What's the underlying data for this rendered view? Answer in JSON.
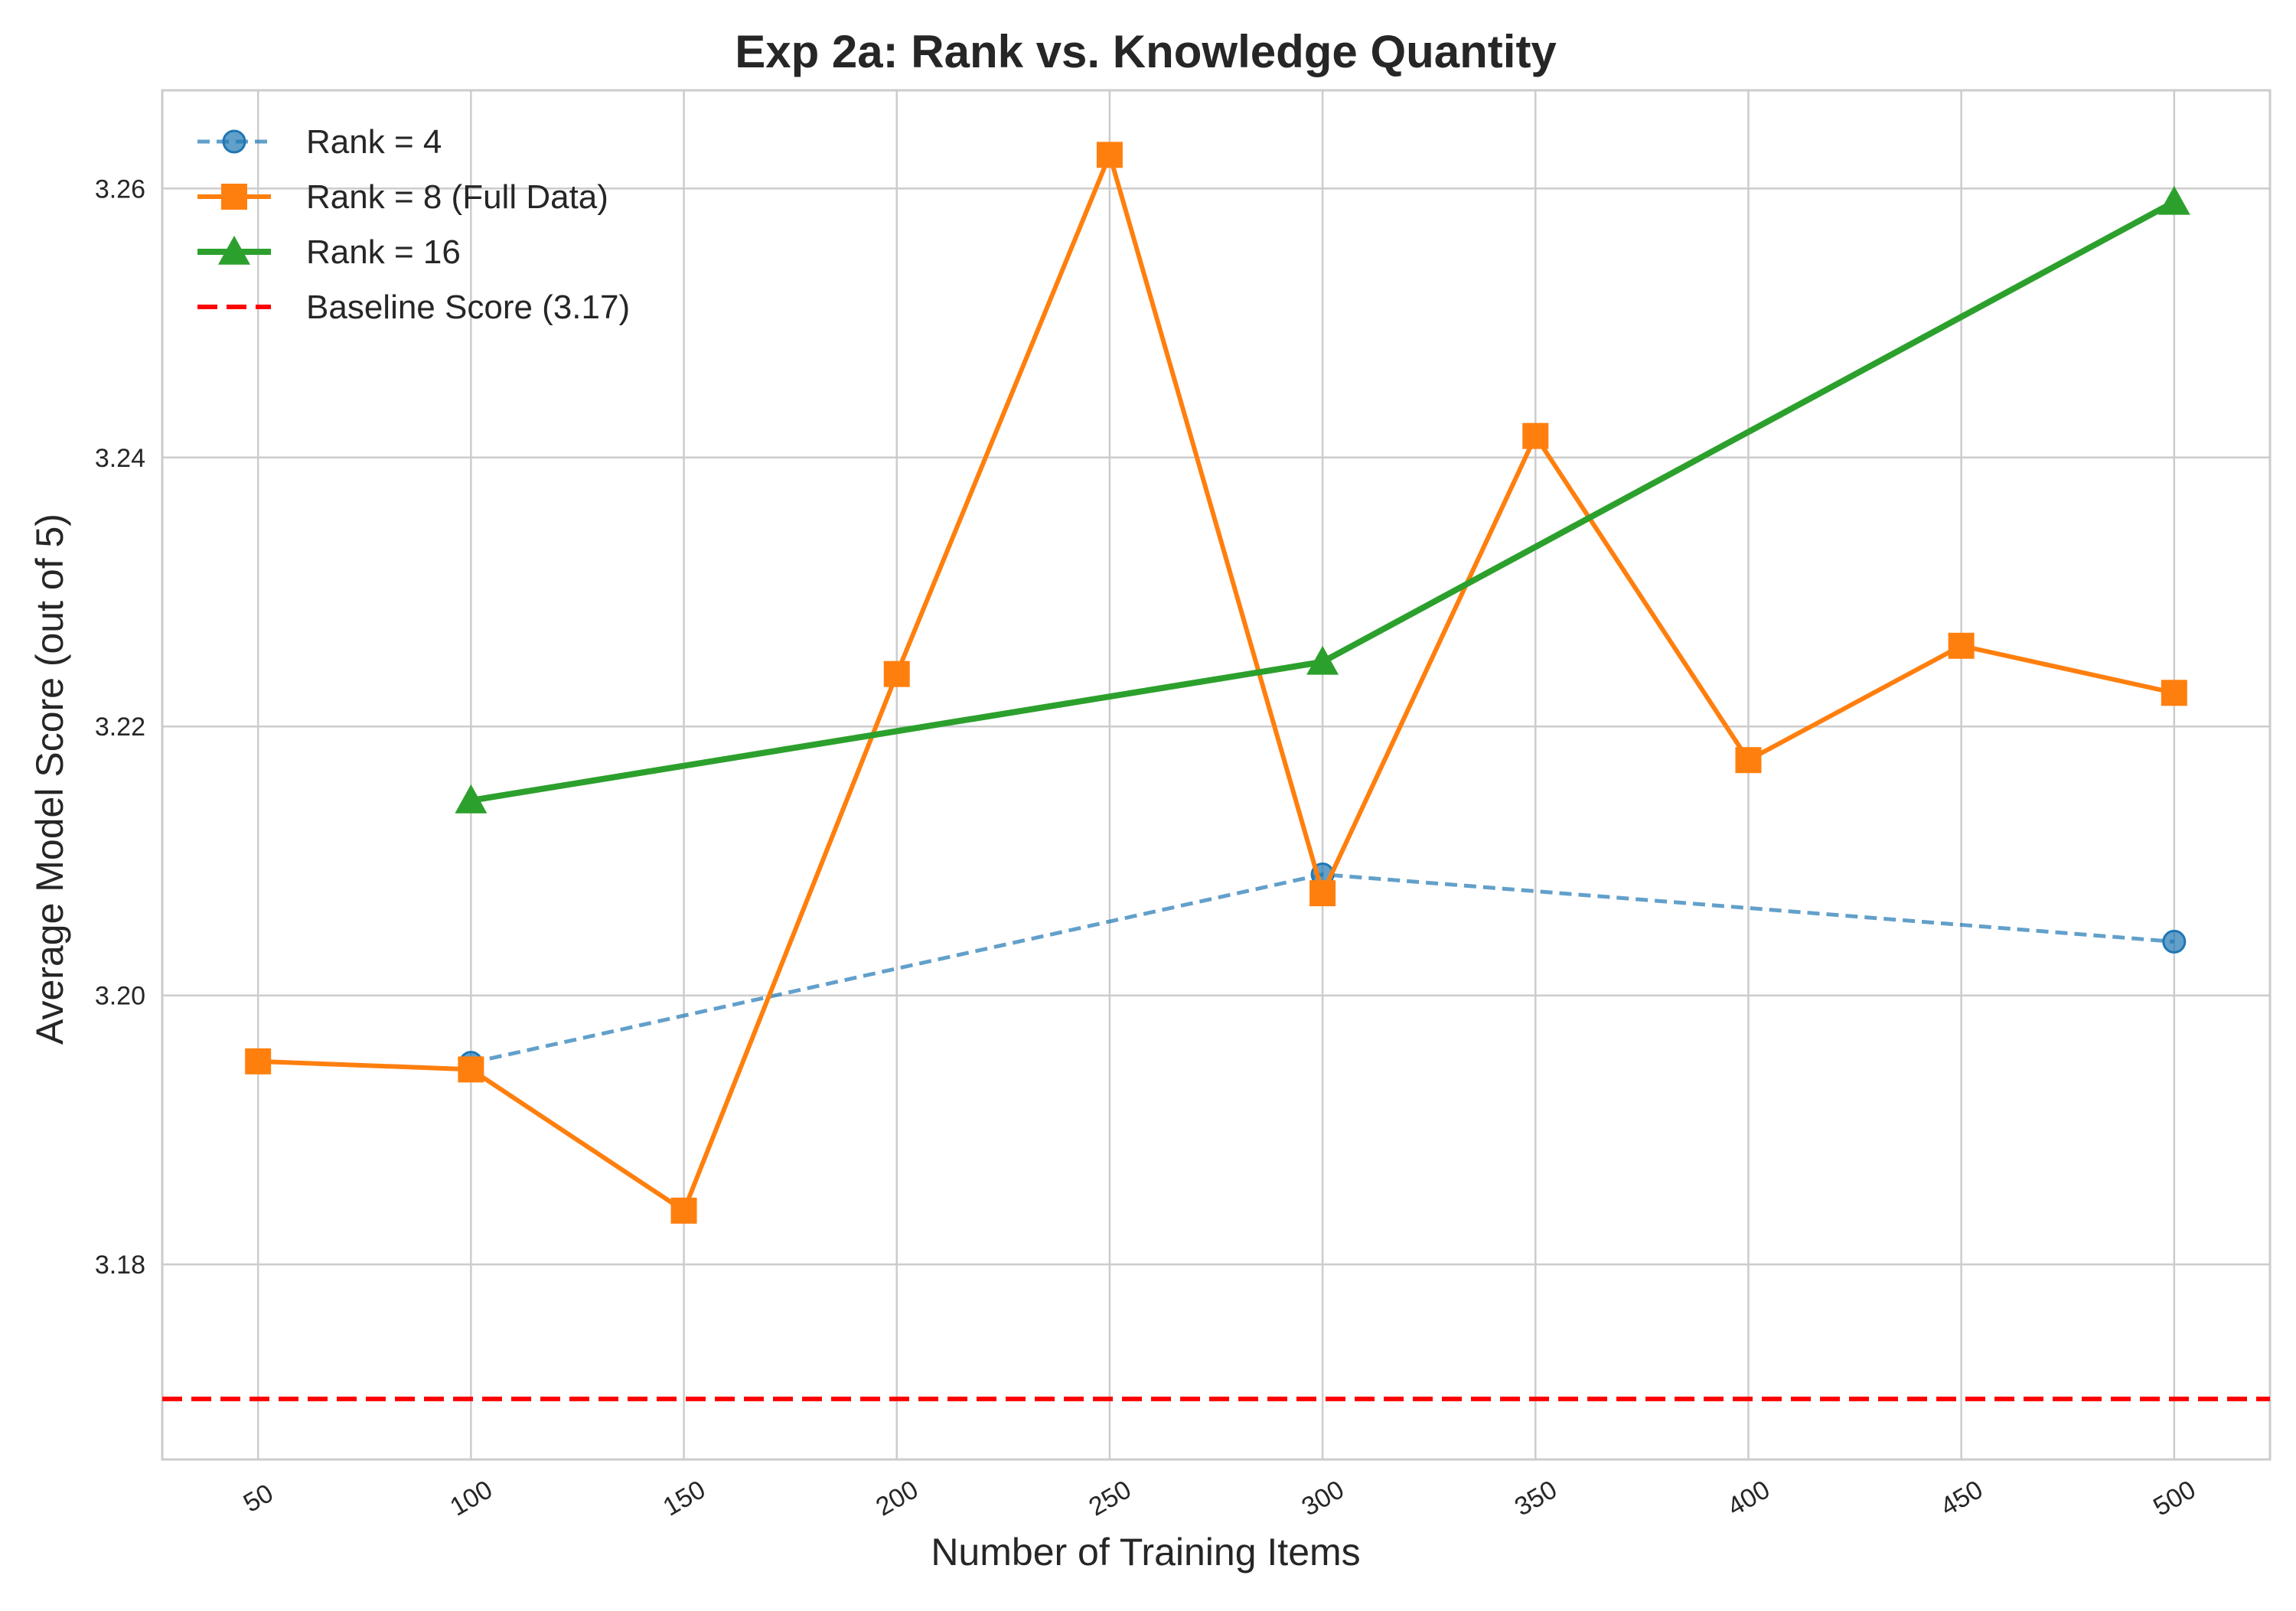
{
  "chart_data": {
    "type": "line",
    "title": "Exp 2a: Rank vs. Knowledge Quantity",
    "xlabel": "Number of Training Items",
    "ylabel": "Average Model Score (out of 5)",
    "xlim": [
      27.5,
      522.5
    ],
    "ylim": [
      3.1655,
      3.2673
    ],
    "x_ticks": [
      50,
      100,
      150,
      200,
      250,
      300,
      350,
      400,
      450,
      500
    ],
    "y_ticks": [
      3.18,
      3.2,
      3.22,
      3.24,
      3.26
    ],
    "grid": true,
    "legend_position": "top-left",
    "series": [
      {
        "name": "Rank = 4",
        "color": "#1f77b4",
        "line_style": "dashed",
        "marker": "circle",
        "x": [
          100,
          300,
          500
        ],
        "y": [
          3.195,
          3.209,
          3.204
        ]
      },
      {
        "name": "Rank = 8 (Full Data)",
        "color": "#ff7f0e",
        "line_style": "solid",
        "marker": "square",
        "x": [
          50,
          100,
          150,
          200,
          250,
          300,
          350,
          400,
          450,
          500
        ],
        "y": [
          3.1951,
          3.1945,
          3.184,
          3.2239,
          3.2625,
          3.2076,
          3.2416,
          3.2175,
          3.226,
          3.2225
        ]
      },
      {
        "name": "Rank = 16",
        "color": "#2ca02c",
        "line_style": "solid",
        "marker": "triangle",
        "x": [
          100,
          300,
          500
        ],
        "y": [
          3.2145,
          3.2248,
          3.259
        ]
      }
    ],
    "baseline": {
      "name": "Baseline Score (3.17)",
      "value": 3.17,
      "color": "#ff0000",
      "line_style": "dashed"
    }
  }
}
